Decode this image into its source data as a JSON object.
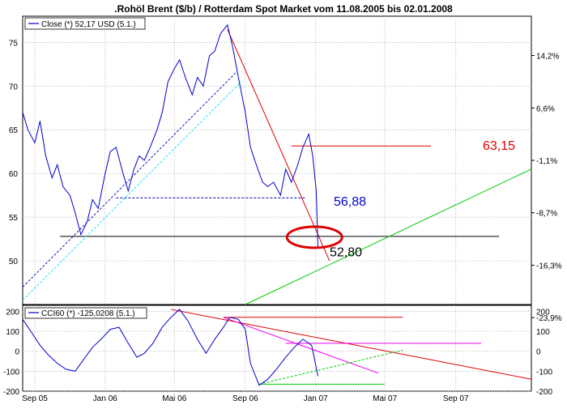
{
  "title": ".Rohöl Brent ($/b) / Rotterdam Spot Market vom 11.08.2005 bis 02.01.2008",
  "colors": {
    "price": "#0000cc",
    "cci": "#0000cc",
    "grid": "#999999",
    "red": "#dd0000",
    "green": "#00cc00",
    "magenta": "#ee00ee",
    "cyan": "#00e0ff",
    "dark_blue": "#0000aa"
  },
  "chart_data": [
    {
      "type": "line",
      "panel": "main",
      "legend": "Close (*) 52,17 USD (5.1.)",
      "legend_position": "top-left",
      "grid": true,
      "x_ticks": [
        "Sep 05",
        "Jan 06",
        "Mai 06",
        "Sep 06",
        "Jan 07",
        "Mai 07",
        "Sep 07"
      ],
      "ylim": [
        45,
        78
      ],
      "y_ticks_left": [
        "75",
        "70",
        "65",
        "60",
        "55",
        "50"
      ],
      "y_ticks_right": [
        "14,2%",
        "6,6%",
        "-1,1%",
        "-8,7%",
        "-16,3%",
        "-23,9%"
      ],
      "series": [
        {
          "name": "Close",
          "x": [
            "2005-08-11",
            "2005-08-20",
            "2005-09-01",
            "2005-09-10",
            "2005-09-20",
            "2005-10-01",
            "2005-10-10",
            "2005-10-20",
            "2005-11-01",
            "2005-11-10",
            "2005-11-20",
            "2005-12-01",
            "2005-12-10",
            "2005-12-20",
            "2006-01-01",
            "2006-01-10",
            "2006-01-20",
            "2006-02-01",
            "2006-02-10",
            "2006-02-20",
            "2006-03-01",
            "2006-03-10",
            "2006-03-20",
            "2006-04-01",
            "2006-04-10",
            "2006-04-20",
            "2006-05-01",
            "2006-05-10",
            "2006-05-20",
            "2006-06-01",
            "2006-06-10",
            "2006-06-20",
            "2006-07-01",
            "2006-07-10",
            "2006-07-20",
            "2006-08-01",
            "2006-08-10",
            "2006-08-20",
            "2006-09-01",
            "2006-09-10",
            "2006-09-20",
            "2006-10-01",
            "2006-10-10",
            "2006-10-20",
            "2006-11-01",
            "2006-11-10",
            "2006-11-20",
            "2006-12-01",
            "2006-12-10",
            "2006-12-20",
            "2006-12-27",
            "2007-01-02",
            "2007-01-05"
          ],
          "y": [
            67,
            65,
            63.5,
            66,
            62,
            59.5,
            61,
            58.5,
            57.5,
            55.5,
            53,
            54.5,
            57,
            56,
            60,
            62.5,
            63,
            60,
            58,
            60.5,
            62,
            61.5,
            63,
            65,
            67,
            70.5,
            72,
            73,
            71,
            69,
            71,
            70,
            73.5,
            74,
            76,
            77,
            74.5,
            71,
            67,
            63,
            61,
            59,
            58.5,
            59,
            57.5,
            60.5,
            59,
            61,
            63,
            64.5,
            62,
            58,
            51.5
          ]
        }
      ],
      "annotations": [
        {
          "text": "63,15",
          "color": "#dd0000"
        },
        {
          "text": "56,88",
          "color": "#0000cc"
        },
        {
          "text": "52,80",
          "color": "#000000"
        }
      ]
    },
    {
      "type": "line",
      "panel": "indicator",
      "legend": "CCI60 (*) -125,0208 (5.1.)",
      "legend_position": "top-left",
      "grid": true,
      "ylim": [
        -200,
        230
      ],
      "y_ticks_left": [
        "200",
        "100",
        "0",
        "-100",
        "-200"
      ],
      "y_ticks_right": [
        "200",
        "100",
        "0",
        "-100",
        "-200"
      ],
      "series": [
        {
          "name": "CCI60",
          "x": [
            "2005-08-11",
            "2005-08-25",
            "2005-09-10",
            "2005-09-25",
            "2005-10-10",
            "2005-10-25",
            "2005-11-10",
            "2005-11-25",
            "2005-12-10",
            "2005-12-25",
            "2006-01-10",
            "2006-01-25",
            "2006-02-10",
            "2006-02-25",
            "2006-03-10",
            "2006-03-25",
            "2006-04-10",
            "2006-04-25",
            "2006-05-10",
            "2006-05-25",
            "2006-06-10",
            "2006-06-25",
            "2006-07-10",
            "2006-07-25",
            "2006-08-05",
            "2006-08-20",
            "2006-09-01",
            "2006-09-10",
            "2006-09-25",
            "2006-10-10",
            "2006-10-25",
            "2006-11-10",
            "2006-11-25",
            "2006-12-10",
            "2006-12-25",
            "2007-01-05"
          ],
          "y": [
            160,
            100,
            30,
            -20,
            -60,
            -90,
            -100,
            -40,
            20,
            60,
            110,
            120,
            40,
            -30,
            -10,
            40,
            120,
            170,
            210,
            150,
            60,
            -10,
            60,
            120,
            170,
            160,
            110,
            -60,
            -170,
            -140,
            -90,
            -30,
            20,
            60,
            30,
            -125
          ]
        }
      ]
    }
  ]
}
